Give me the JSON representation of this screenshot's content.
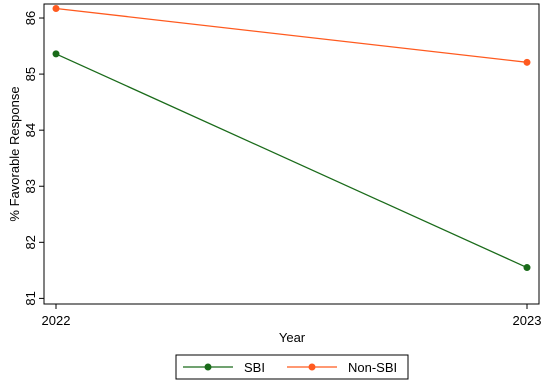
{
  "chart_data": {
    "type": "line",
    "x": [
      2022,
      2023
    ],
    "xlabel": "Year",
    "ylabel": "%  Favorable Response",
    "ylim": [
      80.9,
      86.25
    ],
    "yticks": [
      81,
      82,
      83,
      84,
      85,
      86
    ],
    "xticks": [
      2022,
      2023
    ],
    "grid": false,
    "legend_position": "bottom",
    "series": [
      {
        "name": "SBI",
        "values": [
          85.36,
          81.55
        ],
        "color": "#1a6b1a"
      },
      {
        "name": "Non-SBI",
        "values": [
          86.17,
          85.21
        ],
        "color": "#ff5a1f"
      }
    ]
  }
}
